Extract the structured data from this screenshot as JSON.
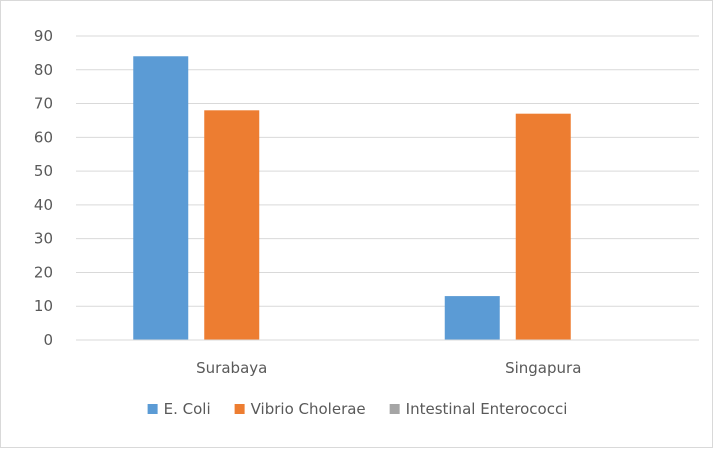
{
  "chart_data": {
    "type": "bar",
    "categories": [
      "Surabaya",
      "Singapura"
    ],
    "series": [
      {
        "name": "E. Coli",
        "values": [
          84,
          13
        ],
        "color": "#5b9bd5"
      },
      {
        "name": "Vibrio Cholerae",
        "values": [
          68,
          67
        ],
        "color": "#ed7d31"
      },
      {
        "name": "Intestinal Enterococci",
        "values": [
          0,
          0
        ],
        "color": "#a5a5a5"
      }
    ],
    "ylim": [
      0,
      90
    ],
    "yticks": [
      0,
      10,
      20,
      30,
      40,
      50,
      60,
      70,
      80,
      90
    ],
    "grid": true,
    "legend_position": "bottom"
  }
}
